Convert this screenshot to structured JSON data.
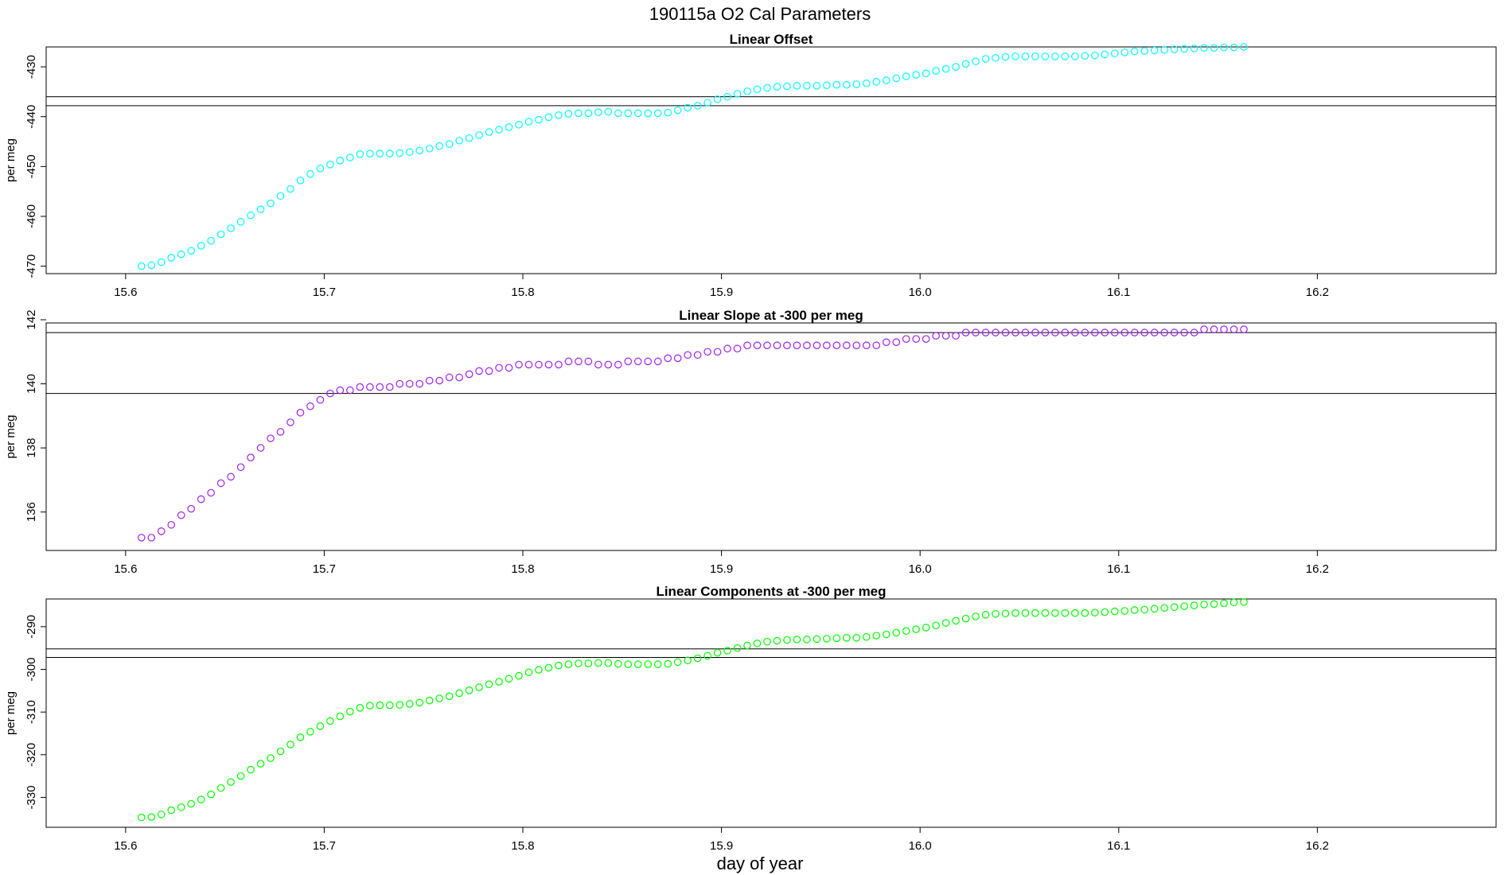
{
  "title": "190115a   O2 Cal Parameters",
  "xlabel": "day of year",
  "colors": {
    "offset": "#00ffff",
    "slope": "#a020f0",
    "components": "#00ff00",
    "refline": "#000000",
    "frame": "#000000"
  },
  "chart_data": [
    {
      "type": "scatter",
      "title": "Linear Offset",
      "ylabel": "per meg",
      "xlim": [
        15.56,
        16.29
      ],
      "ylim": [
        -471.5,
        -426.0
      ],
      "x_ticks": [
        "15.6",
        "15.7",
        "15.8",
        "15.9",
        "16.0",
        "16.1",
        "16.2"
      ],
      "y_ticks": [
        "-430",
        "-440",
        "-450",
        "-460",
        "-470"
      ],
      "hlines": [
        -436.0,
        -437.8
      ],
      "x_start": 15.608,
      "x_step": 0.005,
      "values": [
        -470.0,
        -469.8,
        -469.2,
        -468.3,
        -467.6,
        -466.9,
        -465.9,
        -464.9,
        -463.6,
        -462.4,
        -461.1,
        -459.8,
        -458.6,
        -457.4,
        -455.9,
        -454.5,
        -452.8,
        -451.5,
        -450.4,
        -449.6,
        -448.8,
        -448.2,
        -447.5,
        -447.4,
        -447.4,
        -447.4,
        -447.3,
        -447.1,
        -446.8,
        -446.4,
        -445.9,
        -445.5,
        -444.8,
        -444.3,
        -443.7,
        -443.1,
        -442.6,
        -442.1,
        -441.6,
        -441.0,
        -440.6,
        -440.1,
        -439.7,
        -439.4,
        -439.3,
        -439.3,
        -439.1,
        -439.0,
        -439.3,
        -439.3,
        -439.3,
        -439.3,
        -439.3,
        -439.2,
        -438.7,
        -438.2,
        -437.8,
        -437.2,
        -436.5,
        -436.0,
        -435.4,
        -434.9,
        -434.5,
        -434.2,
        -434.0,
        -433.9,
        -433.8,
        -433.8,
        -433.8,
        -433.7,
        -433.6,
        -433.6,
        -433.5,
        -433.3,
        -433.0,
        -432.7,
        -432.3,
        -431.9,
        -431.6,
        -431.3,
        -430.8,
        -430.4,
        -430.0,
        -429.4,
        -428.9,
        -428.4,
        -428.2,
        -428.0,
        -427.9,
        -427.9,
        -427.9,
        -427.9,
        -427.9,
        -427.9,
        -427.9,
        -427.8,
        -427.7,
        -427.5,
        -427.3,
        -427.1,
        -426.9,
        -426.8,
        -426.7,
        -426.6,
        -426.5,
        -426.4,
        -426.3,
        -426.2,
        -426.2,
        -426.1,
        -426.1,
        -426.0
      ]
    },
    {
      "type": "scatter",
      "title": "Linear Slope at -300 per meg",
      "ylabel": "per meg",
      "xlim": [
        15.56,
        16.29
      ],
      "ylim": [
        134.8,
        141.9
      ],
      "x_ticks": [
        "15.6",
        "15.7",
        "15.8",
        "15.9",
        "16.0",
        "16.1",
        "16.2"
      ],
      "y_ticks": [
        "136",
        "138",
        "140",
        "142"
      ],
      "hlines": [
        141.6,
        139.7
      ],
      "x_start": 15.608,
      "x_step": 0.005,
      "values": [
        135.2,
        135.2,
        135.4,
        135.6,
        135.9,
        136.1,
        136.4,
        136.6,
        136.9,
        137.1,
        137.4,
        137.7,
        138.0,
        138.3,
        138.5,
        138.8,
        139.1,
        139.3,
        139.5,
        139.7,
        139.8,
        139.8,
        139.9,
        139.9,
        139.9,
        139.9,
        140.0,
        140.0,
        140.0,
        140.1,
        140.1,
        140.2,
        140.2,
        140.3,
        140.4,
        140.4,
        140.5,
        140.5,
        140.6,
        140.6,
        140.6,
        140.6,
        140.6,
        140.7,
        140.7,
        140.7,
        140.6,
        140.6,
        140.6,
        140.7,
        140.7,
        140.7,
        140.7,
        140.8,
        140.8,
        140.9,
        140.9,
        141.0,
        141.0,
        141.1,
        141.1,
        141.2,
        141.2,
        141.2,
        141.2,
        141.2,
        141.2,
        141.2,
        141.2,
        141.2,
        141.2,
        141.2,
        141.2,
        141.2,
        141.2,
        141.3,
        141.3,
        141.4,
        141.4,
        141.4,
        141.5,
        141.5,
        141.5,
        141.6,
        141.6,
        141.6,
        141.6,
        141.6,
        141.6,
        141.6,
        141.6,
        141.6,
        141.6,
        141.6,
        141.6,
        141.6,
        141.6,
        141.6,
        141.6,
        141.6,
        141.6,
        141.6,
        141.6,
        141.6,
        141.6,
        141.6,
        141.6,
        141.7,
        141.7,
        141.7,
        141.7,
        141.7
      ]
    },
    {
      "type": "scatter",
      "title": "Linear Components at -300 per meg",
      "ylabel": "per meg",
      "xlim": [
        15.56,
        16.29
      ],
      "ylim": [
        -337.0,
        -283.5
      ],
      "x_ticks": [
        "15.6",
        "15.7",
        "15.8",
        "15.9",
        "16.0",
        "16.1",
        "16.2"
      ],
      "y_ticks": [
        "-290",
        "-300",
        "-310",
        "-320",
        "-330"
      ],
      "hlines": [
        -295.2,
        -297.2
      ],
      "x_start": 15.608,
      "x_step": 0.005,
      "values": [
        -334.7,
        -334.6,
        -334.0,
        -333.0,
        -332.3,
        -331.5,
        -330.5,
        -329.3,
        -327.8,
        -326.4,
        -325.0,
        -323.5,
        -322.1,
        -320.8,
        -319.2,
        -317.6,
        -315.9,
        -314.6,
        -313.3,
        -312.1,
        -311.0,
        -309.9,
        -309.0,
        -308.5,
        -308.4,
        -308.4,
        -308.3,
        -308.1,
        -307.8,
        -307.3,
        -306.8,
        -306.3,
        -305.6,
        -304.9,
        -304.2,
        -303.5,
        -302.9,
        -302.2,
        -301.5,
        -300.7,
        -300.1,
        -299.6,
        -299.1,
        -298.8,
        -298.6,
        -298.6,
        -298.5,
        -298.5,
        -298.7,
        -298.8,
        -298.8,
        -298.8,
        -298.8,
        -298.7,
        -298.3,
        -297.9,
        -297.4,
        -296.8,
        -296.1,
        -295.6,
        -295.0,
        -294.4,
        -293.9,
        -293.5,
        -293.3,
        -293.1,
        -293.0,
        -293.0,
        -292.9,
        -292.8,
        -292.7,
        -292.6,
        -292.6,
        -292.4,
        -292.1,
        -291.8,
        -291.4,
        -291.0,
        -290.6,
        -290.2,
        -289.7,
        -289.1,
        -288.6,
        -288.1,
        -287.6,
        -287.2,
        -287.0,
        -286.9,
        -286.8,
        -286.8,
        -286.8,
        -286.8,
        -286.8,
        -286.8,
        -286.8,
        -286.8,
        -286.7,
        -286.6,
        -286.4,
        -286.3,
        -286.1,
        -286.0,
        -285.8,
        -285.6,
        -285.4,
        -285.2,
        -285.0,
        -284.8,
        -284.7,
        -284.5,
        -284.3,
        -284.2
      ]
    }
  ]
}
